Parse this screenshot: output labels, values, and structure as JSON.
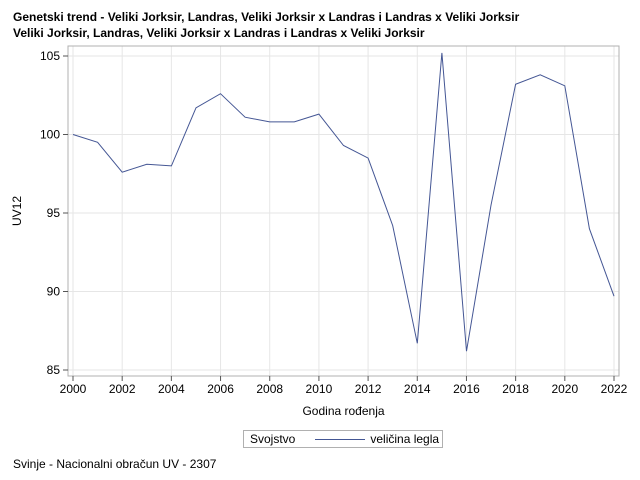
{
  "title_lines": [
    "Genetski trend - Veliki Jorksir, Landras, Veliki Jorksir x Landras i Landras x Veliki Jorksir",
    "Veliki Jorksir, Landras, Veliki Jorksir x Landras i Landras x Veliki Jorksir"
  ],
  "footnote": "Svinje - Nacionalni obračun UV - 2307",
  "legend": {
    "title": "Svojstvo",
    "entries": [
      "veličina legla"
    ]
  },
  "colors": {
    "series_line": "#445694",
    "grid": "#e6e6e6",
    "frame": "#b0b0b0"
  },
  "chart_data": {
    "type": "line",
    "title": "Genetski trend - Veliki Jorksir, Landras, Veliki Jorksir x Landras i Landras x Veliki Jorksir",
    "subtitle": "Veliki Jorksir, Landras, Veliki Jorksir x Landras i Landras x Veliki Jorksir",
    "xlabel": "Godina rođenja",
    "ylabel": "UV12",
    "xlim": [
      2000,
      2022
    ],
    "ylim": [
      85,
      105.5
    ],
    "xticks": [
      2000,
      2002,
      2004,
      2006,
      2008,
      2010,
      2012,
      2014,
      2016,
      2018,
      2020,
      2022
    ],
    "yticks": [
      85,
      90,
      95,
      100,
      105
    ],
    "grid": true,
    "legend_position": "bottom",
    "series": [
      {
        "name": "veličina legla",
        "x": [
          2000,
          2001,
          2002,
          2003,
          2004,
          2005,
          2006,
          2007,
          2008,
          2009,
          2010,
          2011,
          2012,
          2013,
          2014,
          2015,
          2016,
          2017,
          2018,
          2019,
          2020,
          2021,
          2022
        ],
        "y": [
          100.0,
          99.5,
          97.6,
          98.1,
          98.0,
          101.7,
          102.6,
          101.1,
          100.8,
          100.8,
          101.3,
          99.3,
          98.5,
          94.2,
          86.7,
          105.2,
          86.2,
          95.5,
          103.2,
          103.8,
          103.1,
          94.0,
          89.7
        ]
      }
    ]
  }
}
